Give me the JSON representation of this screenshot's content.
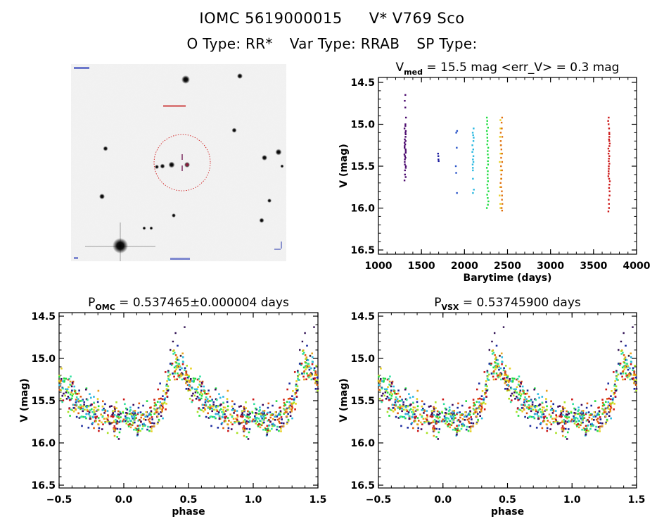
{
  "header": {
    "id": "IOMC 5619000015",
    "name": "V* V769 Sco",
    "otype_label": "O Type: RR*",
    "vartype_label": "Var Type: RRAB",
    "sptype_label": "SP Type:"
  },
  "image_panel": {
    "description": "sky image cutout with target circle",
    "colors": {
      "circle": "#cc0000",
      "marker": "#6a0f4a",
      "label": "#2222cc"
    }
  },
  "chart_data": [
    {
      "type": "scatter",
      "title_main": "V",
      "title_sub": "med",
      "title_rest": " = 15.5 mag <err_V> = 0.3 mag",
      "xlabel": "Barytime (days)",
      "ylabel": "V (mag)",
      "xlim": [
        1000,
        4000
      ],
      "ylim": [
        16.5,
        14.5
      ],
      "xticks": [
        "1000",
        "1500",
        "2000",
        "2500",
        "3000",
        "3500",
        "4000"
      ],
      "xtick_values": [
        1000,
        1500,
        2000,
        2500,
        3000,
        3500,
        4000
      ],
      "yticks": [
        "14.5",
        "15.0",
        "15.5",
        "16.0",
        "16.5"
      ],
      "ytick_values": [
        14.5,
        15.0,
        15.5,
        16.0,
        16.5
      ],
      "seasons": [
        {
          "t": 1310,
          "color": "#4b0a6e",
          "mags": [
            14.65,
            14.72,
            14.8,
            14.92,
            15.0,
            15.02,
            15.05,
            15.08,
            15.1,
            15.12,
            15.15,
            15.18,
            15.2,
            15.22,
            15.24,
            15.26,
            15.28,
            15.3,
            15.32,
            15.34,
            15.36,
            15.38,
            15.4,
            15.42,
            15.45,
            15.48,
            15.5,
            15.52,
            15.55,
            15.6,
            15.63,
            15.67
          ]
        },
        {
          "t": 1700,
          "color": "#1a1a9e",
          "mags": [
            15.35,
            15.38,
            15.42,
            15.44
          ]
        },
        {
          "t": 1905,
          "color": "#2a55c8",
          "mags": [
            15.08,
            15.1,
            15.28,
            15.5,
            15.58,
            15.82
          ]
        },
        {
          "t": 2100,
          "color": "#2ab8e0",
          "mags": [
            15.05,
            15.1,
            15.13,
            15.16,
            15.2,
            15.25,
            15.3,
            15.33,
            15.38,
            15.42,
            15.45,
            15.48,
            15.52,
            15.55,
            15.65,
            15.78,
            15.82
          ]
        },
        {
          "t": 2270,
          "color": "#22dd44",
          "mags": [
            14.92,
            14.96,
            15.0,
            15.04,
            15.08,
            15.12,
            15.16,
            15.2,
            15.24,
            15.28,
            15.32,
            15.36,
            15.4,
            15.44,
            15.48,
            15.52,
            15.56,
            15.6,
            15.64,
            15.68,
            15.72,
            15.76,
            15.8,
            15.84,
            15.88,
            15.92,
            15.96,
            16.0
          ]
        },
        {
          "t": 2415,
          "color": "#e8d020",
          "mags": [
            14.95,
            15.05,
            15.15,
            15.25,
            15.35,
            15.45,
            15.55,
            15.65,
            15.75,
            15.85,
            15.95,
            16.0
          ]
        },
        {
          "t": 2430,
          "color": "#e07010",
          "mags": [
            14.92,
            14.98,
            15.05,
            15.1,
            15.15,
            15.2,
            15.25,
            15.3,
            15.35,
            15.4,
            15.45,
            15.5,
            15.55,
            15.6,
            15.65,
            15.7,
            15.75,
            15.8,
            15.85,
            15.9,
            15.95,
            16.0,
            16.03
          ]
        },
        {
          "t": 3680,
          "color": "#cc1818",
          "mags": [
            14.92,
            14.96,
            15.0,
            15.05,
            15.1,
            15.12,
            15.15,
            15.18,
            15.2,
            15.23,
            15.26,
            15.29,
            15.32,
            15.35,
            15.38,
            15.41,
            15.44,
            15.47,
            15.5,
            15.53,
            15.56,
            15.59,
            15.62,
            15.65,
            15.68,
            15.72,
            15.76,
            15.8,
            15.85,
            15.9,
            15.95,
            16.0,
            16.04
          ]
        }
      ]
    },
    {
      "type": "scatter",
      "title_main": "P",
      "title_sub": "OMC",
      "title_rest": " = 0.537465±0.000004 days",
      "xlabel": "phase",
      "ylabel": "V (mag)",
      "xlim": [
        -0.5,
        1.5
      ],
      "ylim": [
        16.5,
        14.5
      ],
      "xticks": [
        "-0.5",
        "0.0",
        "0.5",
        "1.0",
        "1.5"
      ],
      "xtick_values": [
        -0.5,
        0.0,
        0.5,
        1.0,
        1.5
      ],
      "yticks": [
        "14.5",
        "15.0",
        "15.5",
        "16.0",
        "16.5"
      ],
      "ytick_values": [
        14.5,
        15.0,
        15.5,
        16.0,
        16.5
      ],
      "note": "points plotted at phase and phase+1",
      "points_ref": "phase_points"
    },
    {
      "type": "scatter",
      "title_main": "P",
      "title_sub": "VSX",
      "title_rest": " = 0.53745900 days",
      "xlabel": "phase",
      "ylabel": "V (mag)",
      "xlim": [
        -0.5,
        1.5
      ],
      "ylim": [
        16.5,
        14.5
      ],
      "xticks": [
        "-0.5",
        "0.0",
        "0.5",
        "1.0",
        "1.5"
      ],
      "xtick_values": [
        -0.5,
        0.0,
        0.5,
        1.0,
        1.5
      ],
      "yticks": [
        "14.5",
        "15.0",
        "15.5",
        "16.0",
        "16.5"
      ],
      "ytick_values": [
        14.5,
        15.0,
        15.5,
        16.0,
        16.5
      ],
      "note": "points plotted at phase and phase+1",
      "points_ref": "phase_points"
    }
  ],
  "phase_points": {
    "palette": [
      "#3a0a5e",
      "#1a2a9e",
      "#2ab8e0",
      "#34e0a0",
      "#22dd44",
      "#a8e020",
      "#e8d020",
      "#e8a020",
      "#e05a10",
      "#cc1818"
    ],
    "curve": [
      [
        0.5,
        15.3
      ],
      [
        0.55,
        15.38
      ],
      [
        0.6,
        15.45
      ],
      [
        0.65,
        15.52
      ],
      [
        0.7,
        15.58
      ],
      [
        0.75,
        15.63
      ],
      [
        0.8,
        15.66
      ],
      [
        0.85,
        15.7
      ],
      [
        0.9,
        15.72
      ],
      [
        0.95,
        15.73
      ],
      [
        1.0,
        15.7
      ],
      [
        1.05,
        15.72
      ],
      [
        1.1,
        15.74
      ],
      [
        1.15,
        15.72
      ],
      [
        1.2,
        15.7
      ],
      [
        1.25,
        15.66
      ],
      [
        1.3,
        15.55
      ],
      [
        1.33,
        15.35
      ],
      [
        1.36,
        15.15
      ],
      [
        1.39,
        15.05
      ],
      [
        1.42,
        15.1
      ],
      [
        1.46,
        15.18
      ],
      [
        1.5,
        15.3
      ]
    ],
    "scatter": 0.22,
    "count": 560,
    "outliers": [
      [
        0.38,
        14.8
      ],
      [
        0.4,
        14.7
      ],
      [
        0.47,
        14.63
      ],
      [
        0.36,
        14.9
      ],
      [
        0.44,
        14.97
      ]
    ]
  }
}
